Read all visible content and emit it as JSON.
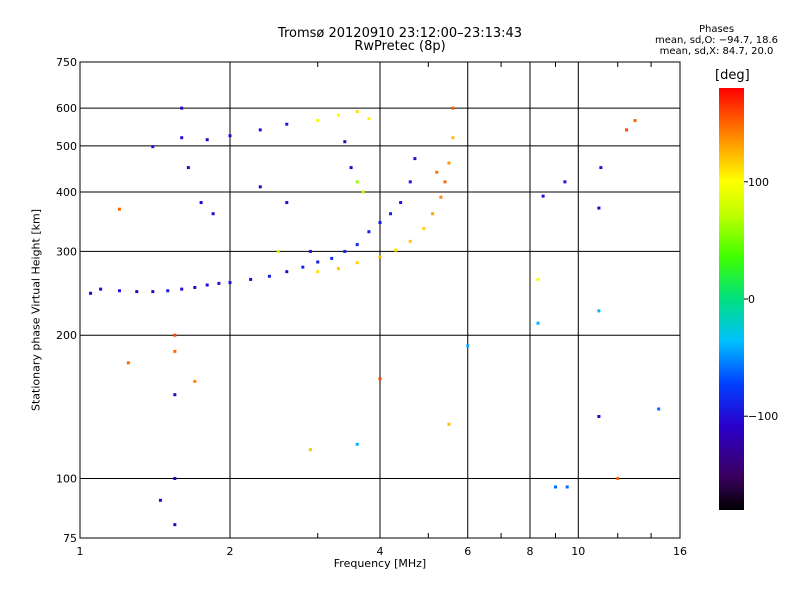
{
  "header": {
    "title": "Tromsø 20120910 23:12:00–23:13:43",
    "subtitle": "RwPretec (8p)"
  },
  "stats": {
    "heading": "Phases",
    "line_o": "mean, sd,O: −94.7, 18.6",
    "line_x": "mean, sd,X: 84.7, 20.0"
  },
  "colorbar": {
    "unit": "[deg]",
    "range": [
      -180,
      180
    ],
    "ticks": [
      100,
      0,
      -100
    ],
    "tick_labels": [
      "100",
      "0",
      "−100"
    ]
  },
  "chart_data": {
    "type": "scatter",
    "title": "Tromsø 20120910 23:12:00–23:13:43",
    "subtitle": "RwPretec (8p)",
    "xlabel": "Frequency [MHz]",
    "ylabel": "Stationary phase Virtual Height [km]",
    "x_scale": "log",
    "y_scale": "log",
    "xlim": [
      1,
      16
    ],
    "ylim": [
      75,
      750
    ],
    "x_ticks": [
      1,
      2,
      4,
      6,
      8,
      10,
      16
    ],
    "x_tick_labels": [
      "1",
      "2",
      "4",
      "6",
      "8",
      "10",
      "16"
    ],
    "y_ticks": [
      75,
      100,
      200,
      300,
      400,
      500,
      600,
      750
    ],
    "y_tick_labels": [
      "75",
      "100",
      "200",
      "300",
      "400",
      "500",
      "600",
      "750"
    ],
    "grid": true,
    "color_by": "phase [deg]",
    "points": [
      [
        1.05,
        245,
        -110
      ],
      [
        1.1,
        250,
        -105
      ],
      [
        1.2,
        248,
        -100
      ],
      [
        1.3,
        247,
        -110
      ],
      [
        1.4,
        247,
        -105
      ],
      [
        1.5,
        248,
        -95
      ],
      [
        1.6,
        250,
        -100
      ],
      [
        1.7,
        252,
        -110
      ],
      [
        1.8,
        255,
        -105
      ],
      [
        1.9,
        257,
        -100
      ],
      [
        2.0,
        258,
        -95
      ],
      [
        2.2,
        262,
        -100
      ],
      [
        2.4,
        266,
        -90
      ],
      [
        2.6,
        272,
        -100
      ],
      [
        2.8,
        278,
        -85
      ],
      [
        3.0,
        285,
        -90
      ],
      [
        3.2,
        290,
        -80
      ],
      [
        3.4,
        300,
        -90
      ],
      [
        3.6,
        310,
        -85
      ],
      [
        3.8,
        330,
        -90
      ],
      [
        4.0,
        345,
        -95
      ],
      [
        4.2,
        360,
        -90
      ],
      [
        4.4,
        380,
        -100
      ],
      [
        4.6,
        420,
        -95
      ],
      [
        4.7,
        470,
        -100
      ],
      [
        3.0,
        272,
        110
      ],
      [
        3.3,
        276,
        120
      ],
      [
        3.6,
        284,
        115
      ],
      [
        4.0,
        292,
        125
      ],
      [
        4.3,
        302,
        110
      ],
      [
        4.6,
        315,
        120
      ],
      [
        4.9,
        335,
        115
      ],
      [
        5.1,
        360,
        130
      ],
      [
        5.3,
        390,
        140
      ],
      [
        5.4,
        420,
        150
      ],
      [
        5.5,
        460,
        135
      ],
      [
        5.6,
        520,
        120
      ],
      [
        5.6,
        600,
        155
      ],
      [
        5.2,
        440,
        145
      ],
      [
        1.6,
        520,
        -100
      ],
      [
        1.8,
        515,
        -110
      ],
      [
        2.0,
        525,
        -105
      ],
      [
        2.3,
        540,
        -100
      ],
      [
        2.6,
        555,
        -95
      ],
      [
        3.0,
        565,
        95
      ],
      [
        3.3,
        580,
        100
      ],
      [
        3.6,
        590,
        110
      ],
      [
        3.8,
        570,
        105
      ],
      [
        3.4,
        510,
        -120
      ],
      [
        3.5,
        450,
        -110
      ],
      [
        3.6,
        420,
        60
      ],
      [
        3.7,
        400,
        70
      ],
      [
        1.6,
        600,
        -110
      ],
      [
        1.65,
        450,
        -100
      ],
      [
        1.75,
        380,
        -110
      ],
      [
        1.85,
        360,
        -105
      ],
      [
        2.3,
        410,
        -110
      ],
      [
        2.6,
        380,
        -100
      ],
      [
        2.9,
        300,
        -95
      ],
      [
        2.5,
        300,
        80
      ],
      [
        1.2,
        368,
        150
      ],
      [
        1.4,
        498,
        -100
      ],
      [
        1.55,
        200,
        160
      ],
      [
        1.55,
        185,
        150
      ],
      [
        1.7,
        160,
        140
      ],
      [
        1.25,
        175,
        150
      ],
      [
        1.55,
        150,
        -110
      ],
      [
        1.55,
        100,
        -120
      ],
      [
        1.55,
        80,
        -110
      ],
      [
        1.45,
        90,
        -100
      ],
      [
        2.9,
        115,
        120
      ],
      [
        3.6,
        118,
        -40
      ],
      [
        4.0,
        162,
        160
      ],
      [
        5.5,
        130,
        120
      ],
      [
        6.0,
        190,
        -40
      ],
      [
        8.3,
        262,
        100
      ],
      [
        8.3,
        212,
        -40
      ],
      [
        8.5,
        392,
        -100
      ],
      [
        9.0,
        96,
        -60
      ],
      [
        9.5,
        96,
        -60
      ],
      [
        9.4,
        420,
        -100
      ],
      [
        11.0,
        225,
        -40
      ],
      [
        11.0,
        135,
        -110
      ],
      [
        12.0,
        100,
        150
      ],
      [
        12.5,
        540,
        160
      ],
      [
        13.0,
        565,
        150
      ],
      [
        14.5,
        140,
        -60
      ],
      [
        11.1,
        450,
        -100
      ],
      [
        11.0,
        370,
        -110
      ]
    ]
  }
}
